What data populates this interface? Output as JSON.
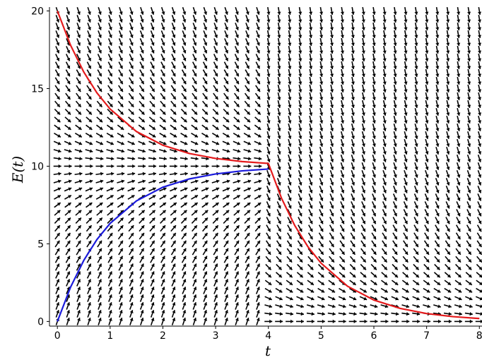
{
  "chart_data": {
    "type": "line",
    "title": "",
    "xlabel": "t",
    "ylabel": "E(t)",
    "xlim": [
      -0.15,
      8.05
    ],
    "ylim": [
      -0.3,
      20.25
    ],
    "x_ticks": [
      "0",
      "1",
      "2",
      "3",
      "4",
      "5",
      "6",
      "7",
      "8"
    ],
    "y_ticks": [
      "0",
      "5",
      "10",
      "15",
      "20"
    ],
    "grid": false,
    "direction_field": {
      "description_free": true,
      "equation_piecewise": [
        {
          "t_range": [
            0,
            4
          ],
          "rate": 1,
          "equilibrium": 10
        },
        {
          "t_range": [
            4,
            8
          ],
          "rate": 1,
          "equilibrium": 0
        }
      ],
      "t_grid": {
        "start": 0,
        "end": 8,
        "step": 0.2
      },
      "E_grid": {
        "start": 0,
        "end": 20,
        "step": 0.5
      }
    },
    "series": [
      {
        "color": "#e41a1c",
        "x": [
          0,
          0.25,
          0.5,
          0.75,
          1,
          1.5,
          2,
          2.5,
          3,
          3.5,
          4,
          4.25,
          4.5,
          4.75,
          5,
          5.5,
          6,
          6.5,
          7,
          7.5,
          8
        ],
        "y": [
          20,
          17.79,
          16.07,
          14.72,
          13.68,
          12.23,
          11.35,
          10.82,
          10.5,
          10.3,
          10.18,
          7.93,
          6.18,
          4.81,
          3.75,
          2.27,
          1.38,
          0.84,
          0.51,
          0.31,
          0.19
        ]
      },
      {
        "color": "#1a1adb",
        "x": [
          0,
          0.25,
          0.5,
          0.75,
          1,
          1.5,
          2,
          2.5,
          3,
          3.5,
          4
        ],
        "y": [
          0,
          2.21,
          3.93,
          5.28,
          6.32,
          7.77,
          8.65,
          9.18,
          9.5,
          9.7,
          9.82
        ]
      }
    ]
  }
}
